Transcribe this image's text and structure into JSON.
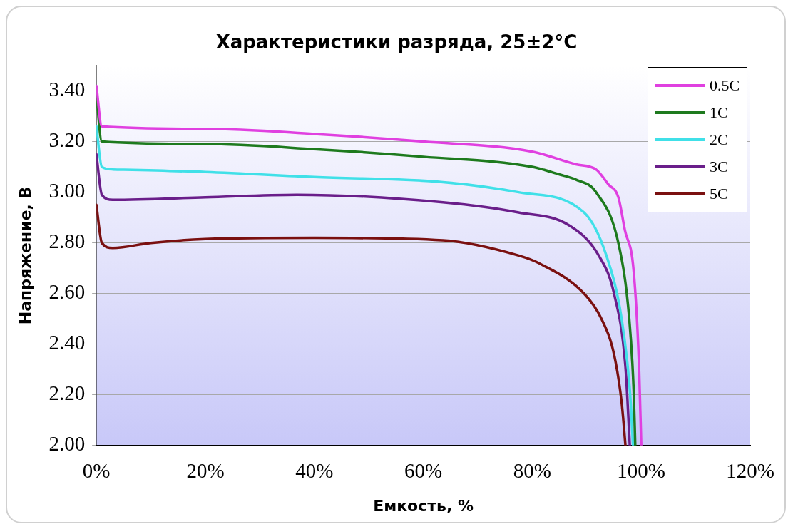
{
  "chart_data": {
    "type": "line",
    "title": "Характеристики разряда, 25±2°C",
    "xlabel": "Емкость, %",
    "ylabel": "Напряжение, В",
    "xlim": [
      0,
      120
    ],
    "xticks": [
      {
        "value": 0,
        "label": "0%"
      },
      {
        "value": 20,
        "label": "20%"
      },
      {
        "value": 40,
        "label": "40%"
      },
      {
        "value": 60,
        "label": "60%"
      },
      {
        "value": 80,
        "label": "80%"
      },
      {
        "value": 100,
        "label": "100%"
      },
      {
        "value": 120,
        "label": "120%"
      }
    ],
    "ylim": [
      2,
      3.5
    ],
    "yticks": [
      {
        "value": 2,
        "label": "2.00"
      },
      {
        "value": 2.2,
        "label": "2.20"
      },
      {
        "value": 2.4,
        "label": "2.40"
      },
      {
        "value": 2.6,
        "label": "2.60"
      },
      {
        "value": 2.8,
        "label": "2.80"
      },
      {
        "value": 3,
        "label": "3.00"
      },
      {
        "value": 3.2,
        "label": "3.20"
      },
      {
        "value": 3.4,
        "label": "3.40"
      }
    ],
    "grid": "y",
    "legend": "top right",
    "marker": "none",
    "line_style": "solid",
    "series": [
      {
        "name": "0.5C",
        "color": "#e040e0",
        "x": [
          0,
          1,
          20,
          40,
          60,
          80,
          88,
          91.7,
          94,
          95.8,
          97,
          98.6,
          99.6,
          100
        ],
        "values": [
          3.42,
          3.26,
          3.25,
          3.23,
          3.2,
          3.16,
          3.11,
          3.09,
          3.03,
          2.98,
          2.85,
          2.69,
          2.31,
          2.0
        ]
      },
      {
        "name": "1C",
        "color": "#1e7a1e",
        "x": [
          0,
          1,
          20,
          40,
          60,
          80,
          85,
          88,
          91.7,
          95.9,
          97.8,
          98.6,
          98.9
        ],
        "values": [
          3.38,
          3.2,
          3.19,
          3.17,
          3.14,
          3.1,
          3.07,
          3.05,
          3.0,
          2.79,
          2.5,
          2.22,
          2.0
        ]
      },
      {
        "name": "2C",
        "color": "#40e0e8",
        "x": [
          0,
          1,
          3,
          20,
          40,
          63.6,
          77.5,
          89.5,
          93.6,
          96.4,
          97.9,
          98.5
        ],
        "values": [
          3.26,
          3.1,
          3.09,
          3.08,
          3.06,
          3.04,
          3.0,
          2.92,
          2.75,
          2.5,
          2.22,
          2.0
        ]
      },
      {
        "name": "3C",
        "color": "#6a1e8a",
        "x": [
          0,
          1,
          3,
          20,
          36.8,
          63.6,
          77.5,
          86.7,
          92.2,
          95,
          97.1,
          97.9
        ],
        "values": [
          3.15,
          2.99,
          2.97,
          2.98,
          2.99,
          2.96,
          2.92,
          2.87,
          2.75,
          2.6,
          2.31,
          2.0
        ]
      },
      {
        "name": "5C",
        "color": "#7a1010",
        "x": [
          0,
          1,
          3,
          10,
          20,
          40,
          63.6,
          77.5,
          81.2,
          89.5,
          92.7,
          95,
          96.4,
          97.1
        ],
        "values": [
          2.95,
          2.8,
          2.78,
          2.8,
          2.815,
          2.82,
          2.81,
          2.75,
          2.72,
          2.6,
          2.5,
          2.36,
          2.17,
          2.0
        ]
      }
    ]
  }
}
